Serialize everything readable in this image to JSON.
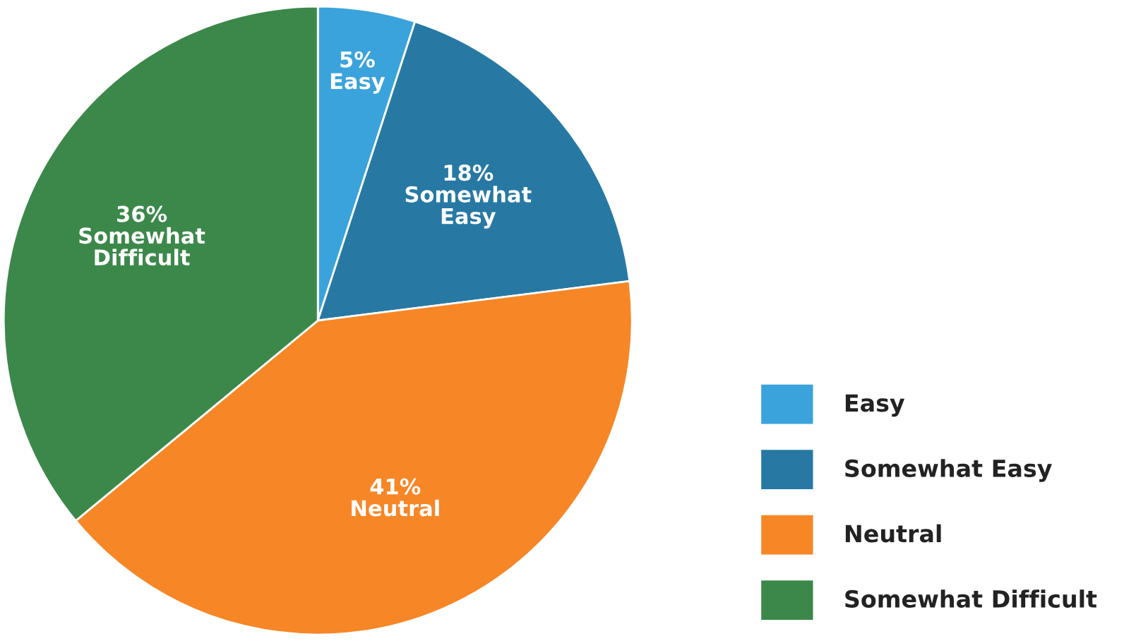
{
  "chart_data": {
    "type": "pie",
    "categories": [
      "Easy",
      "Somewhat Easy",
      "Neutral",
      "Somewhat Difficult"
    ],
    "values": [
      5,
      18,
      41,
      36
    ],
    "colors": [
      "#3ba3db",
      "#2779a4",
      "#f78627",
      "#3c884b"
    ],
    "value_labels": [
      "5%\nEasy",
      "18%\nSomewhat\nEasy",
      "41%\nNeutral",
      "36%\nSomewhat\nDifficult"
    ],
    "legend": "bottom right"
  }
}
